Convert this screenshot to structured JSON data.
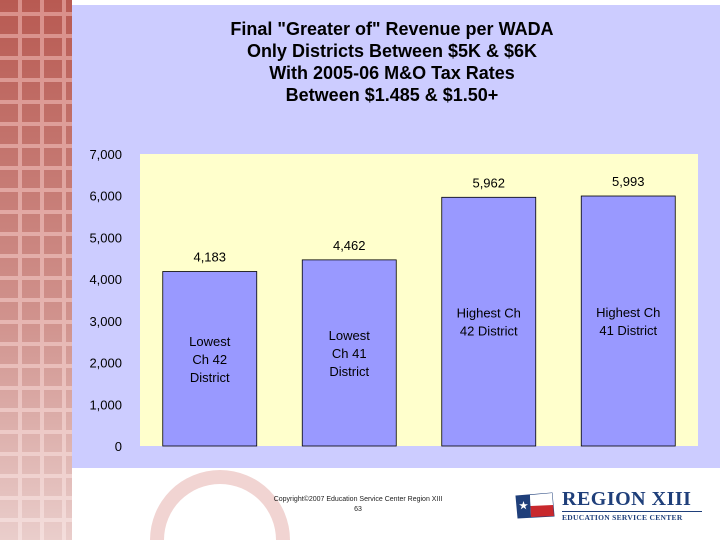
{
  "chart_data": {
    "type": "bar",
    "title_lines": [
      "Final \"Greater of\" Revenue per WADA",
      "Only Districts Between $5K & $6K",
      "With 2005-06 M&O Tax Rates",
      "Between $1.485 & $1.50+"
    ],
    "xlabel": "",
    "ylabel": "",
    "ylim": [
      0,
      7000
    ],
    "yticks": [
      "7,000",
      "6,000",
      "5,000",
      "4,000",
      "3,000",
      "2,000",
      "1,000",
      "0"
    ],
    "ytick_values": [
      7000,
      6000,
      5000,
      4000,
      3000,
      2000,
      1000,
      0
    ],
    "grid": false,
    "legend": "none",
    "bar_color": "#9999ff",
    "plot_bg": "#ffffcc",
    "panel_bg": "#ccccff",
    "bars": [
      {
        "value": 4183,
        "value_label": "4,183",
        "text_lines": [
          "Lowest",
          "Ch 42",
          "District"
        ]
      },
      {
        "value": 4462,
        "value_label": "4,462",
        "text_lines": [
          "Lowest",
          "Ch 41",
          "District"
        ]
      },
      {
        "value": 5962,
        "value_label": "5,962",
        "text_lines": [
          "Highest Ch",
          "42 District"
        ]
      },
      {
        "value": 5993,
        "value_label": "5,993",
        "text_lines": [
          "Highest Ch",
          "41 District"
        ]
      }
    ]
  },
  "footer": {
    "copyright": "Copyright©2007 Education Service Center Region XIII",
    "page_number": "63"
  },
  "logo": {
    "title": "REGION XIII",
    "subtitle": "EDUCATION SERVICE CENTER"
  }
}
